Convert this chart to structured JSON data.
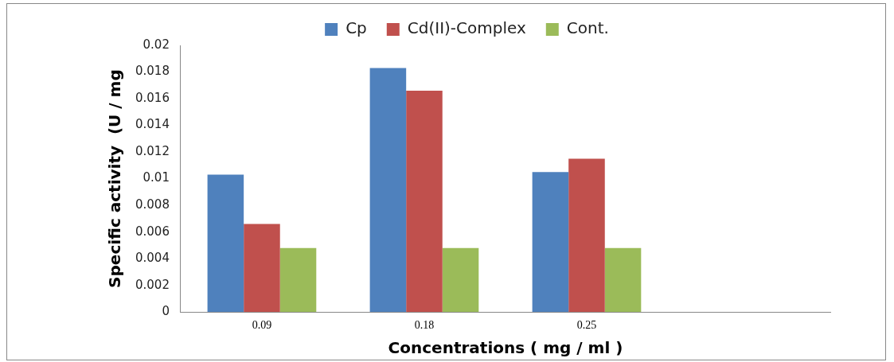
{
  "chart_data": {
    "type": "bar",
    "xlabel": "Concentrations ( mg / ml )",
    "ylabel": "Specific activity  (U / mg",
    "categories": [
      "0.09",
      "0.18",
      "0.25",
      null
    ],
    "series": [
      {
        "name": "Cp",
        "color": "#4f81bd",
        "values": [
          0.0103,
          0.0183,
          0.0105,
          null
        ]
      },
      {
        "name": "Cd(II)-Complex",
        "color": "#c0504d",
        "values": [
          0.0066,
          0.0166,
          0.0115,
          null
        ]
      },
      {
        "name": "Cont.",
        "color": "#9bbb59",
        "values": [
          0.0048,
          0.0048,
          0.0048,
          null
        ]
      }
    ],
    "ylim": [
      0,
      0.02
    ],
    "yticks": [
      0,
      0.002,
      0.004,
      0.006,
      0.008,
      0.01,
      0.012,
      0.014,
      0.016,
      0.018,
      0.02
    ],
    "grid": false,
    "legend": "top"
  }
}
